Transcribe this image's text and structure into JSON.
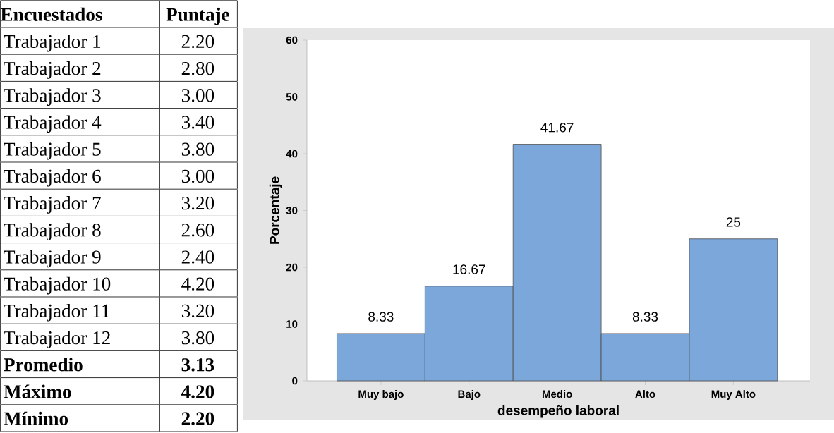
{
  "chart_data": [
    {
      "type": "other",
      "xlabel": "Encuestados",
      "ylabel": "Puntaje",
      "categories": [
        "Trabajador 1",
        "Trabajador 2",
        "Trabajador 3",
        "Trabajador 4",
        "Trabajador 5",
        "Trabajador 6",
        "Trabajador 7",
        "Trabajador 8",
        "Trabajador 9",
        "Trabajador 10",
        "Trabajador 11",
        "Trabajador 12",
        "**Promedio**",
        "**Máximo**",
        "**Mínimo**"
      ],
      "values": [
        2.2,
        2.8,
        3.0,
        3.4,
        3.8,
        3.0,
        3.2,
        2.6,
        2.4,
        4.2,
        3.2,
        3.8,
        3.13,
        4.2,
        2.2
      ],
      "value_labels": [
        "2.20",
        "2.80",
        "3.00",
        "3.40",
        "3.80",
        "3.00",
        "3.20",
        "2.60",
        "2.40",
        "4.20",
        "3.20",
        "3.80",
        "**3.13**",
        "**4.20**",
        "**2.20**"
      ]
    },
    {
      "type": "bar",
      "xlabel": "desempeño laboral",
      "ylabel": "Porcentaje",
      "categories": [
        "Muy bajo",
        "Bajo",
        "Medio",
        "Alto",
        "Muy Alto"
      ],
      "values": [
        8.33,
        16.67,
        41.67,
        8.33,
        25
      ],
      "color": "#7ba7da",
      "ylim": [
        0,
        60
      ],
      "yticks": [
        0,
        10,
        20,
        30,
        40,
        50,
        60
      ],
      "data_labels": true
    }
  ]
}
